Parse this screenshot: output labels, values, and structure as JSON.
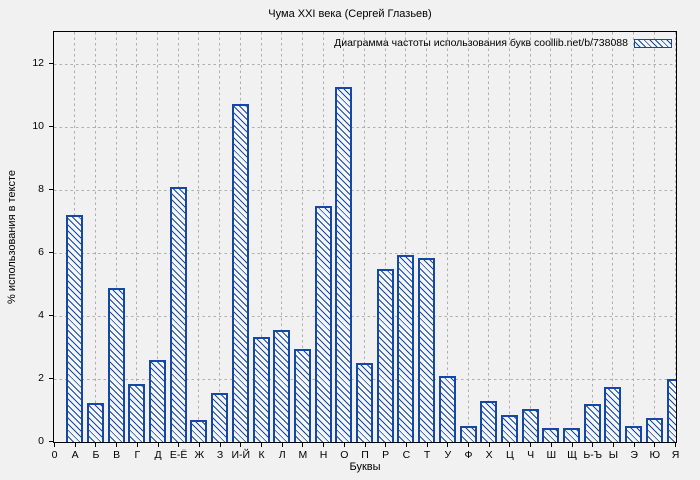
{
  "title": "Чума XXI века (Сергей Глазьев)",
  "chart_data": {
    "type": "bar",
    "title": "Чума XXI века (Сергей Глазьев)",
    "legend_label": "Диаграмма частоты использования букв coollib.net/b/738088",
    "legend_position": "top-right-inside",
    "xlabel": "Буквы",
    "ylabel": "% использования в тексте",
    "x_origin_label": "0",
    "categories": [
      "А",
      "Б",
      "В",
      "Г",
      "Д",
      "Е-Ё",
      "Ж",
      "З",
      "И-Й",
      "К",
      "Л",
      "М",
      "Н",
      "О",
      "П",
      "Р",
      "С",
      "Т",
      "У",
      "Ф",
      "Х",
      "Ц",
      "Ч",
      "Ш",
      "Щ",
      "Ь-Ъ",
      "Ы",
      "Э",
      "Ю",
      "Я"
    ],
    "values": [
      7.2,
      1.25,
      4.9,
      1.85,
      2.6,
      8.1,
      0.7,
      1.55,
      10.75,
      3.35,
      3.55,
      2.95,
      7.5,
      11.3,
      2.5,
      5.5,
      5.95,
      5.85,
      2.1,
      0.5,
      1.3,
      0.85,
      1.05,
      0.45,
      0.45,
      1.2,
      1.75,
      0.5,
      0.75,
      2.0
    ],
    "ylim": [
      0,
      13
    ],
    "yticks": [
      0,
      2,
      4,
      6,
      8,
      10,
      12
    ],
    "grid": true,
    "hatch": "diagonal-down",
    "bar_color": "#1548a4",
    "grid_color": "#aeaeae",
    "background_color": "#f1f1f2"
  }
}
